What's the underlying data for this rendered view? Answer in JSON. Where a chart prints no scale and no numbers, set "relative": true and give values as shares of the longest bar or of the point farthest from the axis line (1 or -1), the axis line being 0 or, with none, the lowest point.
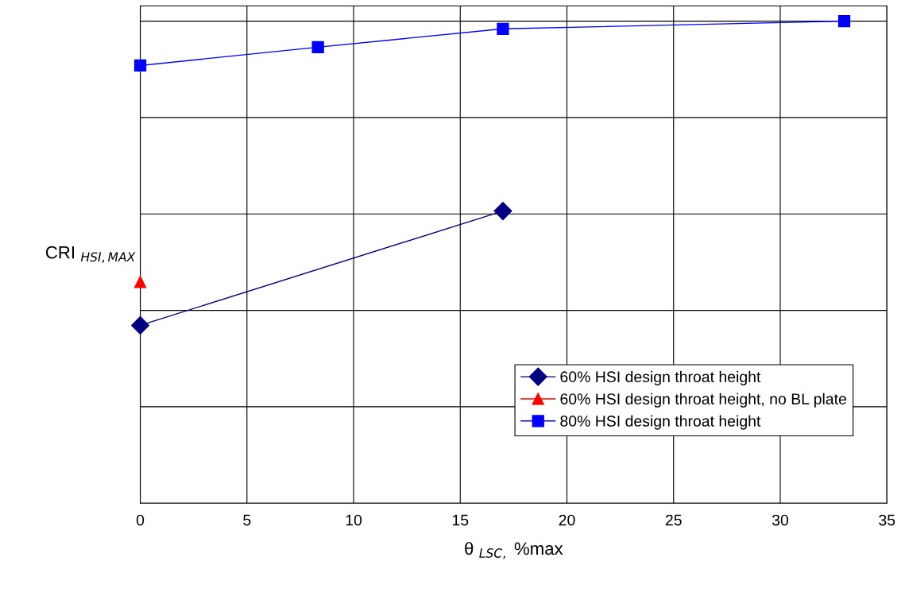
{
  "chart_data": {
    "type": "line",
    "relative": true,
    "xlabel": "θ $_{LSC,}$ %max",
    "ylabel": "CRI $_{HSI,MAX}$",
    "xlim": [
      0,
      35
    ],
    "xticks": [
      0,
      5,
      10,
      15,
      20,
      25,
      30,
      35
    ],
    "grid": true,
    "legend": "bottom right",
    "tick_labels": "x",
    "line_style": "solid",
    "series": [
      {
        "name": "60% HSI design throat height",
        "color": "#000080",
        "marker": "diamond",
        "x": [
          0,
          17
        ],
        "values": [
          0.369,
          0.606
        ]
      },
      {
        "name": "60% HSI design throat height, no BL plate",
        "color": "#ff0000",
        "marker": "triangle",
        "x": [
          0
        ],
        "values": [
          0.459
        ]
      },
      {
        "name": "80% HSI design throat height",
        "color": "#0000ff",
        "marker": "square",
        "x": [
          0,
          8.33,
          17,
          33
        ],
        "values": [
          0.908,
          0.946,
          0.984,
          1.0
        ]
      }
    ]
  }
}
